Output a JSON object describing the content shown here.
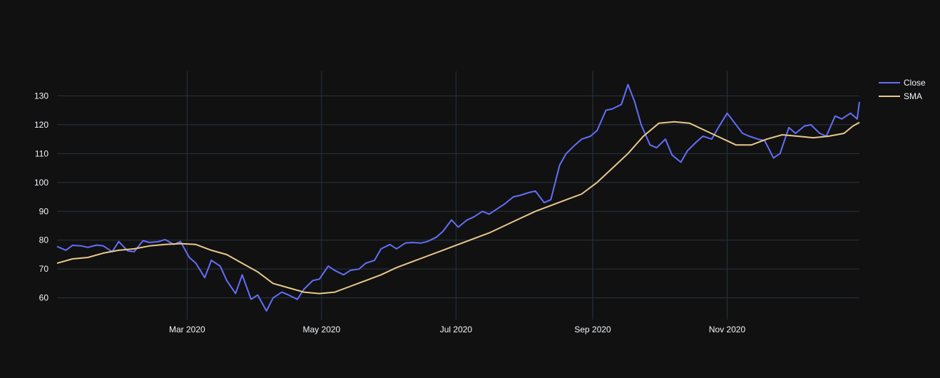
{
  "chart_data": {
    "type": "line",
    "x_axis": {
      "type": "date",
      "range": [
        "2020-01-02",
        "2020-12-31"
      ],
      "ticks": [
        {
          "date": "2020-03-01",
          "label": "Mar 2020"
        },
        {
          "date": "2020-05-01",
          "label": "May 2020"
        },
        {
          "date": "2020-07-01",
          "label": "Jul 2020"
        },
        {
          "date": "2020-09-01",
          "label": "Sep 2020"
        },
        {
          "date": "2020-11-01",
          "label": "Nov 2020"
        }
      ]
    },
    "y_axis": {
      "range": [
        52.5,
        138.5
      ],
      "ticks": [
        60,
        70,
        80,
        90,
        100,
        110,
        120,
        130
      ]
    },
    "grid": true,
    "legend": {
      "position": "top-right"
    },
    "colors": {
      "background": "#111111",
      "grid": "#283442",
      "tick_text": "#f2f5fa",
      "legend_text": "#f2f5fa"
    },
    "series": [
      {
        "name": "Close",
        "color": "#636efa",
        "points": [
          [
            "2020-01-02",
            77.8
          ],
          [
            "2020-01-06",
            76.5
          ],
          [
            "2020-01-09",
            78.2
          ],
          [
            "2020-01-13",
            78.0
          ],
          [
            "2020-01-16",
            77.5
          ],
          [
            "2020-01-20",
            78.3
          ],
          [
            "2020-01-23",
            78.0
          ],
          [
            "2020-01-27",
            76.0
          ],
          [
            "2020-01-30",
            79.5
          ],
          [
            "2020-02-03",
            76.3
          ],
          [
            "2020-02-06",
            76.0
          ],
          [
            "2020-02-10",
            79.8
          ],
          [
            "2020-02-13",
            79.2
          ],
          [
            "2020-02-17",
            79.5
          ],
          [
            "2020-02-20",
            80.2
          ],
          [
            "2020-02-24",
            78.5
          ],
          [
            "2020-02-27",
            79.5
          ],
          [
            "2020-03-02",
            74.0
          ],
          [
            "2020-03-05",
            72.0
          ],
          [
            "2020-03-09",
            67.0
          ],
          [
            "2020-03-12",
            73.0
          ],
          [
            "2020-03-16",
            71.0
          ],
          [
            "2020-03-19",
            66.0
          ],
          [
            "2020-03-23",
            61.5
          ],
          [
            "2020-03-26",
            68.0
          ],
          [
            "2020-03-30",
            59.5
          ],
          [
            "2020-04-02",
            61.0
          ],
          [
            "2020-04-06",
            55.5
          ],
          [
            "2020-04-09",
            60.0
          ],
          [
            "2020-04-13",
            62.0
          ],
          [
            "2020-04-16",
            61.0
          ],
          [
            "2020-04-20",
            59.5
          ],
          [
            "2020-04-23",
            63.0
          ],
          [
            "2020-04-27",
            66.0
          ],
          [
            "2020-04-30",
            66.5
          ],
          [
            "2020-05-04",
            71.0
          ],
          [
            "2020-05-07",
            69.5
          ],
          [
            "2020-05-11",
            68.0
          ],
          [
            "2020-05-14",
            69.5
          ],
          [
            "2020-05-18",
            70.0
          ],
          [
            "2020-05-21",
            72.0
          ],
          [
            "2020-05-25",
            73.0
          ],
          [
            "2020-05-28",
            77.0
          ],
          [
            "2020-06-01",
            78.5
          ],
          [
            "2020-06-04",
            77.0
          ],
          [
            "2020-06-08",
            79.0
          ],
          [
            "2020-06-11",
            79.2
          ],
          [
            "2020-06-15",
            79.0
          ],
          [
            "2020-06-18",
            79.5
          ],
          [
            "2020-06-22",
            81.0
          ],
          [
            "2020-06-25",
            83.0
          ],
          [
            "2020-06-29",
            87.0
          ],
          [
            "2020-07-02",
            84.5
          ],
          [
            "2020-07-06",
            87.0
          ],
          [
            "2020-07-09",
            88.0
          ],
          [
            "2020-07-13",
            90.0
          ],
          [
            "2020-07-16",
            89.0
          ],
          [
            "2020-07-20",
            91.0
          ],
          [
            "2020-07-23",
            92.5
          ],
          [
            "2020-07-27",
            95.0
          ],
          [
            "2020-07-30",
            95.5
          ],
          [
            "2020-08-03",
            96.5
          ],
          [
            "2020-08-06",
            97.0
          ],
          [
            "2020-08-10",
            93.0
          ],
          [
            "2020-08-13",
            94.0
          ],
          [
            "2020-08-17",
            106.0
          ],
          [
            "2020-08-20",
            110.0
          ],
          [
            "2020-08-24",
            113.0
          ],
          [
            "2020-08-27",
            115.0
          ],
          [
            "2020-08-31",
            116.0
          ],
          [
            "2020-09-03",
            118.0
          ],
          [
            "2020-09-07",
            125.0
          ],
          [
            "2020-09-10",
            125.5
          ],
          [
            "2020-09-14",
            127.0
          ],
          [
            "2020-09-17",
            133.9
          ],
          [
            "2020-09-20",
            128.0
          ],
          [
            "2020-09-23",
            120.0
          ],
          [
            "2020-09-27",
            113.0
          ],
          [
            "2020-09-30",
            112.0
          ],
          [
            "2020-10-04",
            115.0
          ],
          [
            "2020-10-07",
            109.5
          ],
          [
            "2020-10-11",
            107.0
          ],
          [
            "2020-10-14",
            111.0
          ],
          [
            "2020-10-18",
            114.0
          ],
          [
            "2020-10-21",
            116.0
          ],
          [
            "2020-10-25",
            115.0
          ],
          [
            "2020-10-28",
            119.0
          ],
          [
            "2020-11-01",
            124.0
          ],
          [
            "2020-11-04",
            121.0
          ],
          [
            "2020-11-08",
            117.0
          ],
          [
            "2020-11-11",
            116.0
          ],
          [
            "2020-11-15",
            115.0
          ],
          [
            "2020-11-18",
            114.5
          ],
          [
            "2020-11-22",
            108.5
          ],
          [
            "2020-11-25",
            110.0
          ],
          [
            "2020-11-29",
            119.0
          ],
          [
            "2020-12-02",
            117.0
          ],
          [
            "2020-12-06",
            119.5
          ],
          [
            "2020-12-09",
            120.0
          ],
          [
            "2020-12-13",
            117.0
          ],
          [
            "2020-12-16",
            116.0
          ],
          [
            "2020-12-20",
            123.0
          ],
          [
            "2020-12-23",
            122.0
          ],
          [
            "2020-12-27",
            124.0
          ],
          [
            "2020-12-30",
            122.0
          ],
          [
            "2020-12-31",
            127.9
          ]
        ]
      },
      {
        "name": "SMA",
        "color": "#e8c98a",
        "points": [
          [
            "2020-01-02",
            72.0
          ],
          [
            "2020-01-09",
            73.5
          ],
          [
            "2020-01-16",
            74.0
          ],
          [
            "2020-01-23",
            75.5
          ],
          [
            "2020-01-30",
            76.5
          ],
          [
            "2020-02-06",
            77.0
          ],
          [
            "2020-02-13",
            78.0
          ],
          [
            "2020-02-20",
            78.5
          ],
          [
            "2020-02-27",
            78.8
          ],
          [
            "2020-03-05",
            78.5
          ],
          [
            "2020-03-12",
            76.5
          ],
          [
            "2020-03-19",
            75.0
          ],
          [
            "2020-03-26",
            72.0
          ],
          [
            "2020-04-02",
            69.0
          ],
          [
            "2020-04-09",
            65.0
          ],
          [
            "2020-04-16",
            63.5
          ],
          [
            "2020-04-23",
            62.0
          ],
          [
            "2020-04-30",
            61.5
          ],
          [
            "2020-05-07",
            62.0
          ],
          [
            "2020-05-14",
            64.0
          ],
          [
            "2020-05-21",
            66.0
          ],
          [
            "2020-05-28",
            68.0
          ],
          [
            "2020-06-04",
            70.5
          ],
          [
            "2020-06-11",
            72.5
          ],
          [
            "2020-06-18",
            74.5
          ],
          [
            "2020-06-25",
            76.5
          ],
          [
            "2020-07-02",
            78.5
          ],
          [
            "2020-07-09",
            80.5
          ],
          [
            "2020-07-16",
            82.5
          ],
          [
            "2020-07-23",
            85.0
          ],
          [
            "2020-07-30",
            87.5
          ],
          [
            "2020-08-06",
            90.0
          ],
          [
            "2020-08-13",
            92.0
          ],
          [
            "2020-08-20",
            94.0
          ],
          [
            "2020-08-27",
            96.0
          ],
          [
            "2020-09-03",
            100.0
          ],
          [
            "2020-09-10",
            105.0
          ],
          [
            "2020-09-17",
            110.0
          ],
          [
            "2020-09-24",
            116.0
          ],
          [
            "2020-10-01",
            120.5
          ],
          [
            "2020-10-08",
            121.0
          ],
          [
            "2020-10-15",
            120.5
          ],
          [
            "2020-10-22",
            118.0
          ],
          [
            "2020-10-29",
            115.5
          ],
          [
            "2020-11-05",
            113.0
          ],
          [
            "2020-11-12",
            113.0
          ],
          [
            "2020-11-19",
            115.0
          ],
          [
            "2020-11-26",
            116.5
          ],
          [
            "2020-12-03",
            116.0
          ],
          [
            "2020-12-10",
            115.5
          ],
          [
            "2020-12-17",
            116.0
          ],
          [
            "2020-12-24",
            117.0
          ],
          [
            "2020-12-28",
            119.5
          ],
          [
            "2020-12-31",
            120.8
          ]
        ]
      }
    ]
  }
}
